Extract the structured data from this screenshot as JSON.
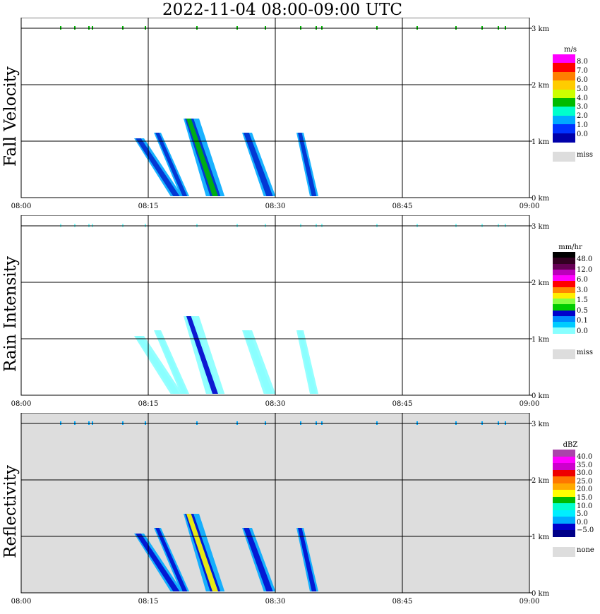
{
  "title": "2022-11-04   08:00-09:00 UTC",
  "x_ticks": [
    "08:00",
    "08:15",
    "08:30",
    "08:45",
    "09:00"
  ],
  "y_ticks": [
    "0 km",
    "1 km",
    "2 km",
    "3 km"
  ],
  "panels": [
    {
      "id": "fall-velocity",
      "ylabel": "Fall Velocity",
      "background": "#ffffff",
      "legend": {
        "unit": "m/s",
        "swatches": [
          "#ff00ff",
          "#ff0000",
          "#ff7f00",
          "#ffcc00",
          "#ccff00",
          "#00bb00",
          "#00ffcc",
          "#00aaff",
          "#0033ff",
          "#0000aa"
        ],
        "labels": [
          "8.0",
          "7.0",
          "6.0",
          "5.0",
          "4.0",
          "3.0",
          "2.0",
          "1.0",
          "0.0"
        ],
        "miss_label": "miss"
      },
      "storm_colors": [
        "#0022cc",
        "#00aaff",
        "#00eecc",
        "#00bb00"
      ]
    },
    {
      "id": "rain-intensity",
      "ylabel": "Rain Intensity",
      "background": "#ffffff",
      "legend": {
        "unit": "mm/hr",
        "swatches": [
          "#000000",
          "#330022",
          "#660055",
          "#bb00bb",
          "#ff00ff",
          "#ff0000",
          "#ff8800",
          "#ffee00",
          "#88ff44",
          "#00cc00",
          "#0000cc",
          "#0088ff",
          "#00ccff",
          "#88ffff",
          "#ffffff"
        ],
        "labels": [
          "48.0",
          "12.0",
          "6.0",
          "3.0",
          "1.5",
          "0.5",
          "0.1",
          "0.0"
        ],
        "miss_label": "miss"
      },
      "storm_colors": [
        "#88ffff",
        "#88ffff",
        "#00ccff",
        "#0000cc"
      ]
    },
    {
      "id": "reflectivity",
      "ylabel": "Reflectivity",
      "background": "#dddddd",
      "legend": {
        "unit": "dBZ",
        "swatches": [
          "#aa44aa",
          "#ff00ff",
          "#cc00cc",
          "#ee0000",
          "#ff7700",
          "#ffaa00",
          "#ffff00",
          "#00bb00",
          "#00ffcc",
          "#00eeff",
          "#00aaff",
          "#0000cc",
          "#000088"
        ],
        "labels": [
          "40.0",
          "35.0",
          "30.0",
          "25.0",
          "20.0",
          "15.0",
          "10.0",
          "5.0",
          "0.0",
          "−5.0"
        ],
        "miss_label": "none"
      },
      "storm_colors": [
        "#0000cc",
        "#00aaff",
        "#00eeff",
        "#ffff00"
      ]
    }
  ]
}
